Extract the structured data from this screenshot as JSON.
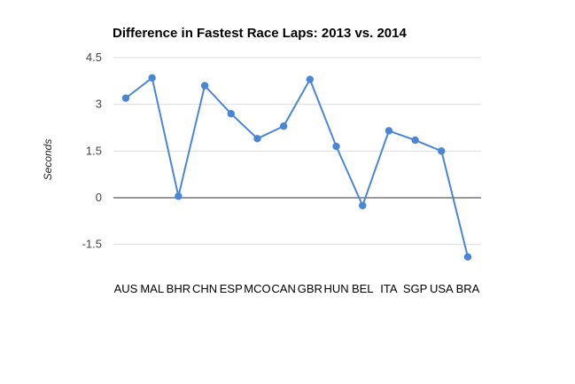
{
  "chart_data": {
    "type": "line",
    "title": "Difference in Fastest Race Laps: 2013 vs. 2014",
    "xlabel": "",
    "ylabel": "Seconds",
    "categories": [
      "AUS",
      "MAL",
      "BHR",
      "CHN",
      "ESP",
      "MCO",
      "CAN",
      "GBR",
      "HUN",
      "BEL",
      "ITA",
      "SGP",
      "USA",
      "BRA"
    ],
    "series": [
      {
        "name": "Difference",
        "values": [
          3.2,
          3.85,
          0.05,
          3.6,
          2.7,
          1.9,
          2.3,
          3.8,
          1.65,
          -0.25,
          2.15,
          1.85,
          1.5,
          -1.9
        ]
      }
    ],
    "yticks": [
      4.5,
      3,
      1.5,
      0,
      -1.5
    ],
    "ytick_labels": [
      "4.5",
      "3",
      "1.5",
      "0",
      "-1.5"
    ],
    "ylim": [
      -2.1,
      4.5
    ],
    "grid": true,
    "legend": "none",
    "line_color": "#4a86d8",
    "gridline_color": "#dddddd",
    "baseline_color": "#777777"
  }
}
